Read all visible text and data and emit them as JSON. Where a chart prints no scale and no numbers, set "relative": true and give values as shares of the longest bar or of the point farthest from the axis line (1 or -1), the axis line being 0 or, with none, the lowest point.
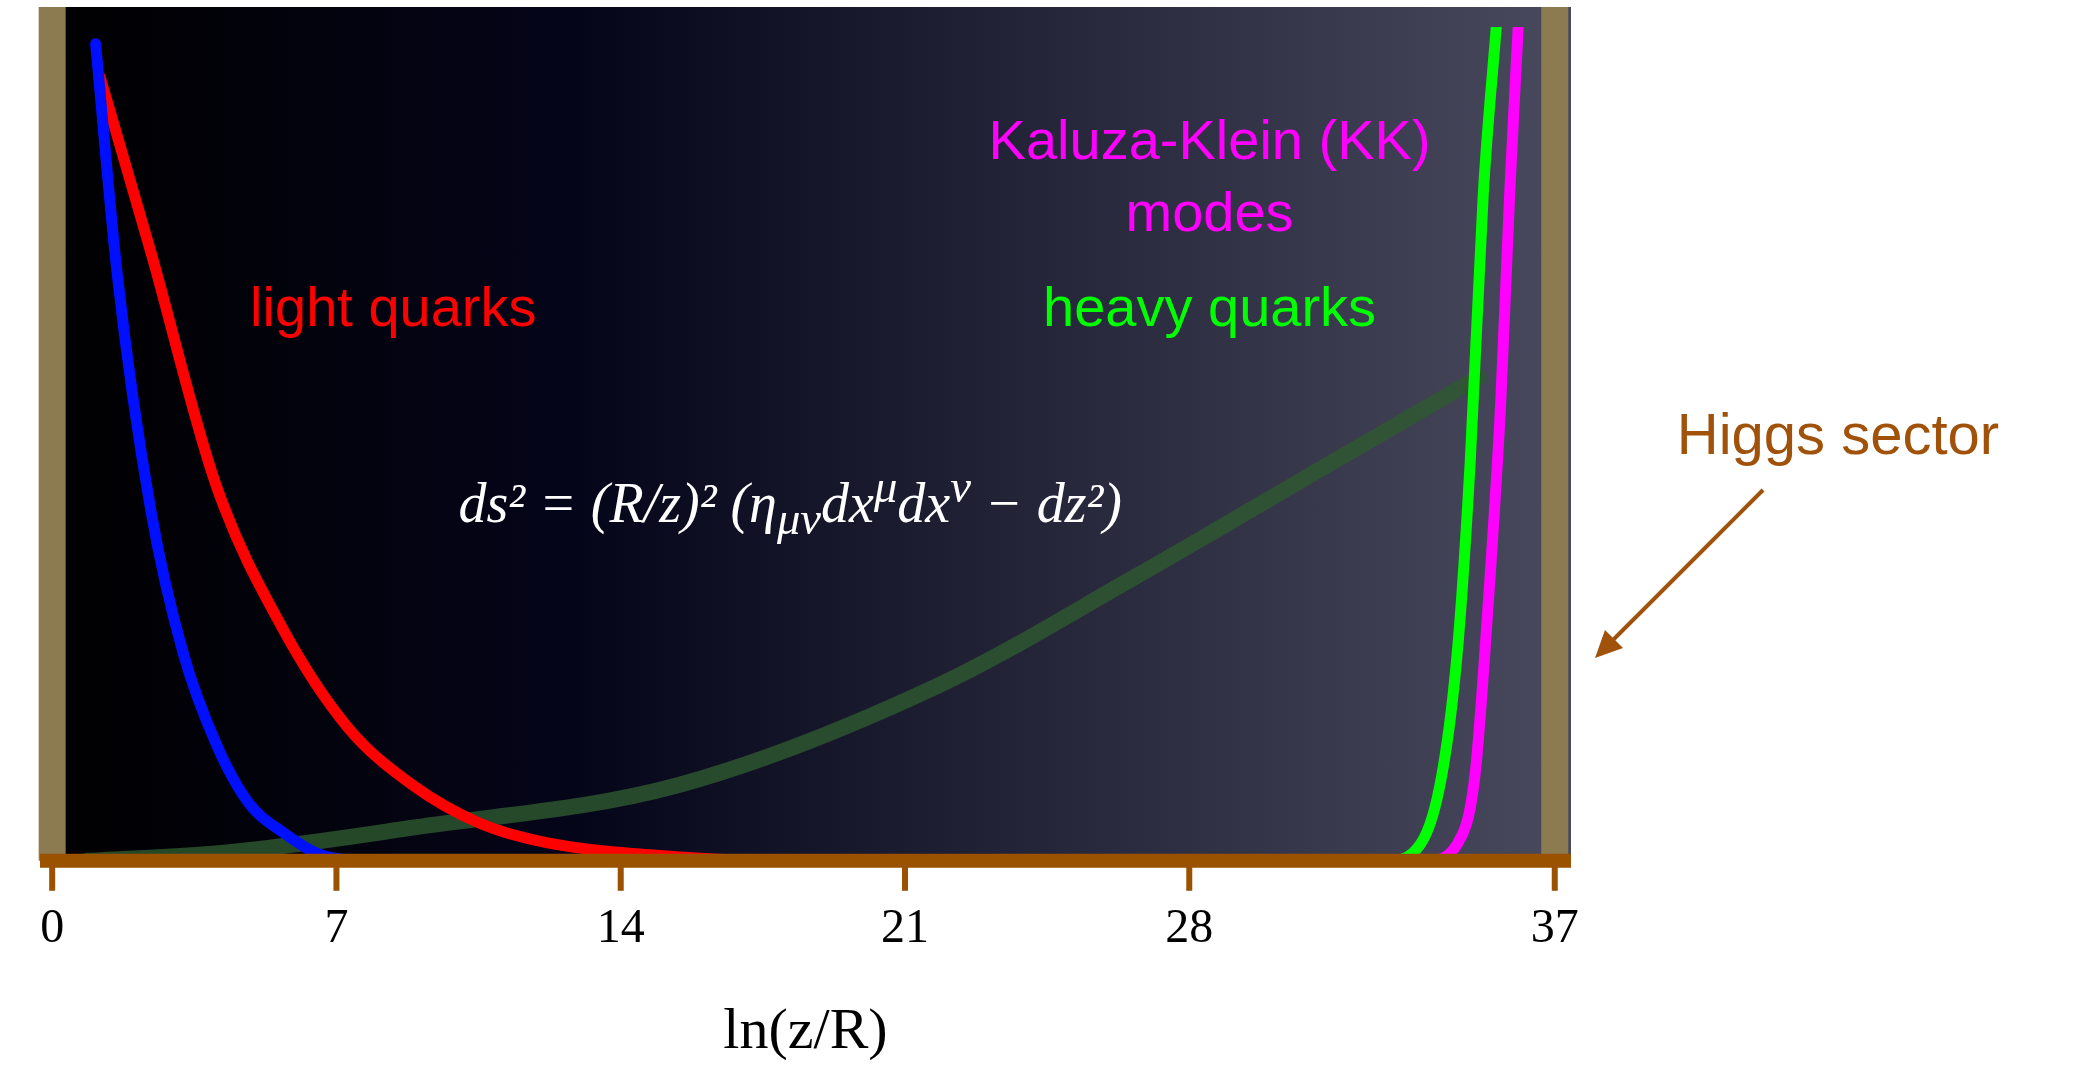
{
  "chart_data": {
    "type": "line",
    "relative": true,
    "xlabel": "ln(z/R)",
    "xlim": [
      -0.3,
      37.4
    ],
    "xticks": [
      0,
      7,
      14,
      21,
      28,
      37
    ],
    "grid": false,
    "legend": false,
    "marker": "none",
    "line_style": "solid",
    "ref_lines": [
      {
        "axis": "x",
        "value": 0,
        "color": "#8c7b50"
      },
      {
        "axis": "x",
        "value": 37,
        "color": "#8c7b50"
      }
    ],
    "annotations": [
      "ds² = (R/z)² (η$_{μν}$dx$^{μ}$dx$^{ν}$ − dz²)",
      "Higgs sector"
    ],
    "series": [
      {
        "color": "#0010ff",
        "x": [
          1.07,
          1.61,
          2.43,
          3.22,
          4.04,
          4.83,
          5.66,
          6.77,
          8.06,
          10.74
        ],
        "values": [
          0.98,
          0.7,
          0.42,
          0.25,
          0.14,
          0.07,
          0.035,
          0.005,
          0,
          0
        ]
      },
      {
        "name": "light quarks",
        "color": "#ff0000",
        "x": [
          1.18,
          2.43,
          4.04,
          5.66,
          7.28,
          8.9,
          10.53,
          12.14,
          15.36,
          18.59,
          22.56
        ],
        "values": [
          0.94,
          0.73,
          0.45,
          0.28,
          0.16,
          0.09,
          0.045,
          0.022,
          0.005,
          0,
          0
        ]
      },
      {
        "color": "#2e5a30",
        "x": [
          0.86,
          4.3,
          8.92,
          15.36,
          21.81,
          26.65,
          31.59,
          35.13
        ],
        "values": [
          0,
          0.01,
          0.04,
          0.09,
          0.21,
          0.34,
          0.48,
          0.58
        ]
      },
      {
        "name": "heavy quarks",
        "color": "#00ff00",
        "x": [
          30.3,
          32.88,
          33.52,
          34.17,
          34.6,
          34.92,
          35.24,
          35.56
        ],
        "values": [
          0,
          0,
          0.01,
          0.09,
          0.25,
          0.48,
          0.8,
          1.0
        ]
      },
      {
        "name": "Kaluza-Klein (KK) modes",
        "color": "#ff00ff",
        "x": [
          30.62,
          33.84,
          34.6,
          35.03,
          35.35,
          35.67,
          35.89,
          36.1
        ],
        "values": [
          0,
          0,
          0.02,
          0.1,
          0.3,
          0.55,
          0.8,
          1.0
        ]
      }
    ]
  }
}
